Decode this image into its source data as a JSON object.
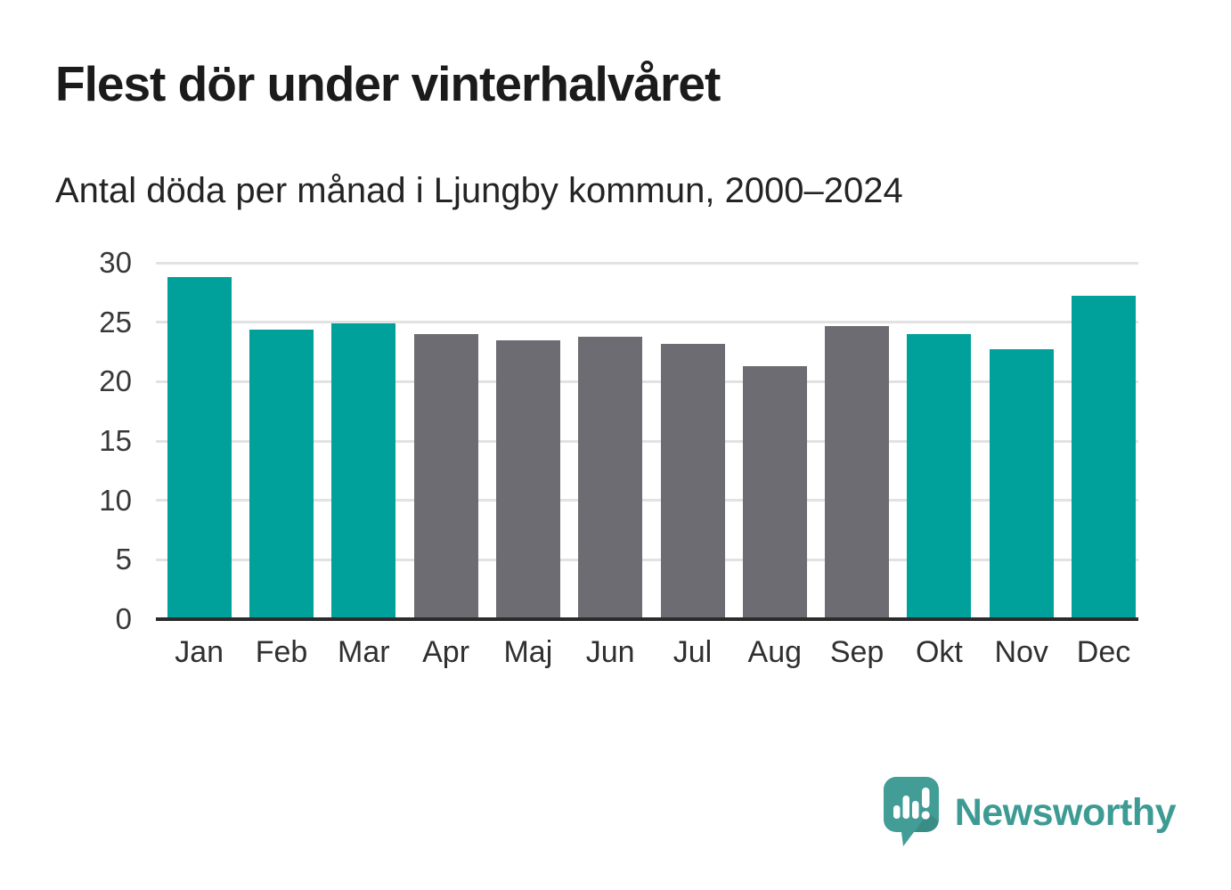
{
  "header": {
    "title": "Flest dör under vinterhalvåret",
    "subtitle": "Antal döda per månad i Ljungby kommun, 2000–2024"
  },
  "chart_data": {
    "type": "bar",
    "title": "Flest dör under vinterhalvåret",
    "subtitle": "Antal döda per månad i Ljungby kommun, 2000–2024",
    "categories": [
      "Jan",
      "Feb",
      "Mar",
      "Apr",
      "Maj",
      "Jun",
      "Jul",
      "Aug",
      "Sep",
      "Okt",
      "Nov",
      "Dec"
    ],
    "values": [
      28.8,
      24.4,
      24.9,
      24.0,
      23.5,
      23.8,
      23.2,
      21.3,
      24.7,
      24.0,
      22.7,
      27.2
    ],
    "groups": [
      "winter",
      "winter",
      "winter",
      "summer",
      "summer",
      "summer",
      "summer",
      "summer",
      "summer",
      "winter",
      "winter",
      "winter"
    ],
    "palette": {
      "winter": "#00a19a",
      "summer": "#6d6c72"
    },
    "xlabel": "",
    "ylabel": "",
    "ylim": [
      0,
      30
    ],
    "yticks": [
      0,
      5,
      10,
      15,
      20,
      25,
      30
    ],
    "grid": true,
    "legend": false
  },
  "branding": {
    "name": "Newsworthy",
    "logo_icon": "newsworthy-speech-bubble-bar-chart-icon",
    "logo_color": "#419d96",
    "text_color": "#3d9b94"
  },
  "colors": {
    "background": "#ffffff",
    "title_text": "#1b1b1b",
    "subtitle_text": "#242424",
    "axis_text": "#383838",
    "gridline": "#e2e2e2",
    "axis_line": "#2b2b2b",
    "bar_winter": "#00a19a",
    "bar_summer": "#6d6c72"
  }
}
